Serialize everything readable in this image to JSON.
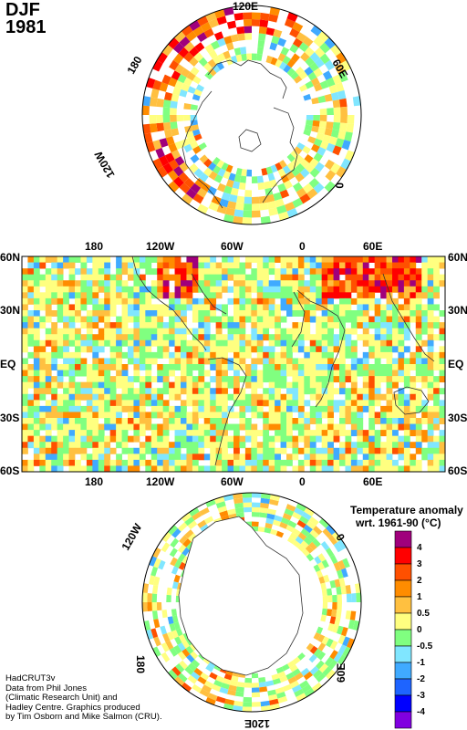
{
  "title": {
    "season": "DJF",
    "year": "1981"
  },
  "north_polar": {
    "labels": {
      "top": "120E",
      "upper_right": "60E",
      "right": "0",
      "upper_left": "180",
      "left": "120W"
    }
  },
  "world_map": {
    "x_ticks": [
      "180",
      "120W",
      "60W",
      "0",
      "60E"
    ],
    "y_ticks_left": [
      "60N",
      "30N",
      "EQ",
      "30S",
      "60S"
    ],
    "y_ticks_right": [
      "60N",
      "30N",
      "EQ",
      "30S",
      "60S"
    ]
  },
  "south_polar": {
    "labels": {
      "upper_left": "120W",
      "upper_right": "0",
      "lower_left": "180",
      "lower_right": "60E",
      "bottom": "120E"
    }
  },
  "legend": {
    "title_line1": "Temperature anomaly",
    "title_line2": "wrt. 1961-90  (°C)",
    "colors": [
      "#a0007c",
      "#ff0000",
      "#ff5000",
      "#ff8c00",
      "#ffc040",
      "#ffff80",
      "#80ff80",
      "#80e6ff",
      "#40aaff",
      "#1e64ff",
      "#0000ff",
      "#8000e0"
    ],
    "tick_labels": [
      "4",
      "3",
      "2",
      "1",
      "0.5",
      "0",
      "-0.5",
      "-1",
      "-2",
      "-3",
      "-4"
    ]
  },
  "credits": {
    "line1": "HadCRUT3v",
    "line2": "Data from Phil Jones",
    "line3": "(Climatic Research Unit) and",
    "line4": "Hadley Centre.  Graphics produced",
    "line5": "by Tim Osborn and Mike Salmon (CRU)."
  }
}
